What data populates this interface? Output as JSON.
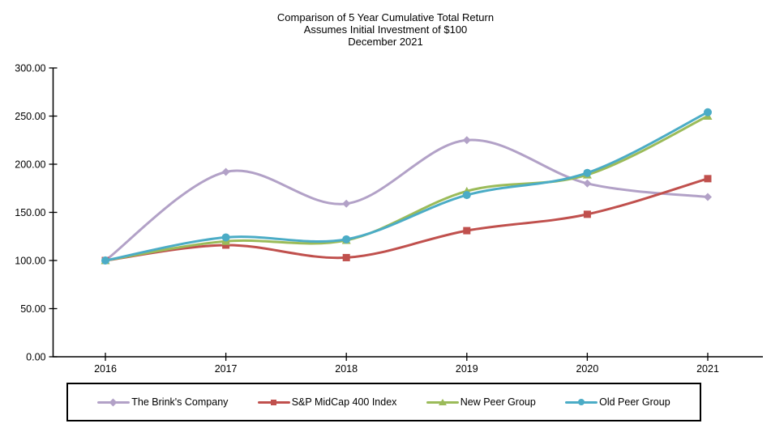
{
  "title": {
    "line1": "Comparison of 5 Year Cumulative Total Return",
    "line2": "Assumes Initial Investment of $100",
    "line3": "December 2021"
  },
  "chart_data": {
    "type": "line",
    "smooth": true,
    "grid": false,
    "legend_position": "bottom",
    "categories": [
      "2016",
      "2017",
      "2018",
      "2019",
      "2020",
      "2021"
    ],
    "series": [
      {
        "name": "The Brink's Company",
        "color": "#b2a1c7",
        "marker": "diamond",
        "values": [
          100,
          192,
          159,
          225,
          180,
          166
        ]
      },
      {
        "name": "S&P MidCap 400 Index",
        "color": "#c0504d",
        "marker": "square",
        "values": [
          100,
          116,
          103,
          131,
          148,
          185
        ]
      },
      {
        "name": "New Peer Group",
        "color": "#9bbb59",
        "marker": "triangle",
        "values": [
          100,
          120,
          121,
          172,
          189,
          250
        ]
      },
      {
        "name": "Old Peer Group",
        "color": "#4bacc6",
        "marker": "circle",
        "values": [
          100,
          124,
          122,
          168,
          191,
          254
        ]
      }
    ],
    "y_axis": {
      "min": 0,
      "max": 300,
      "step": 50,
      "tick_labels": [
        "0.00",
        "50.00",
        "100.00",
        "150.00",
        "200.00",
        "250.00",
        "300.00"
      ]
    },
    "x_axis": {
      "tick_labels": [
        "2016",
        "2017",
        "2018",
        "2019",
        "2020",
        "2021"
      ]
    },
    "axis_color": "#000000"
  }
}
